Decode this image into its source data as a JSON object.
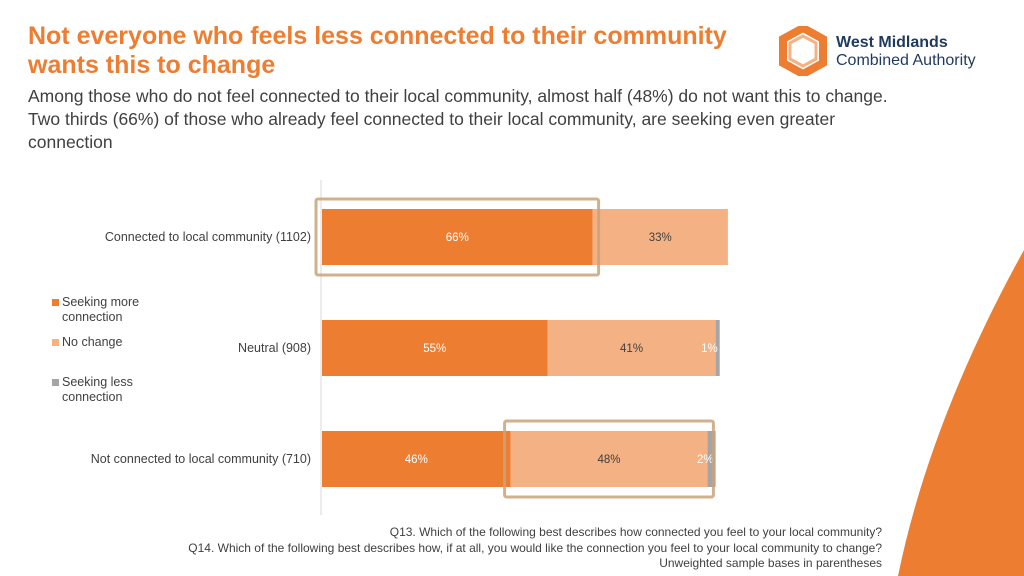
{
  "header": {
    "title": "Not everyone who feels less connected to their community wants this to change",
    "subtitle": "Among those who do not feel connected to their local community, almost half (48%) do not want this to change. Two thirds (66%) of those who already feel connected to their local community, are seeking even greater connection"
  },
  "logo": {
    "line1": "West Midlands",
    "line2": "Combined Authority"
  },
  "chart_data": {
    "type": "bar",
    "orientation": "horizontal",
    "stacked": true,
    "categories": [
      "Connected to local community (1102)",
      "Neutral (908)",
      "Not connected to local community (710)"
    ],
    "series": [
      {
        "name": "Seeking more connection",
        "values": [
          66,
          55,
          46
        ],
        "labels": [
          "66%",
          "55%",
          "46%"
        ],
        "color": "#ED7D31"
      },
      {
        "name": "No change",
        "values": [
          33,
          41,
          48
        ],
        "labels": [
          "33%",
          "41%",
          "48%"
        ],
        "color": "#F4B183"
      },
      {
        "name": "Seeking less connection",
        "values": [
          0,
          1,
          2
        ],
        "labels": [
          "",
          "1%",
          "2%"
        ],
        "color": "#A5A5A5"
      }
    ],
    "xlim": [
      0,
      100
    ],
    "legend_position": "left",
    "highlights": [
      {
        "category_index": 0,
        "series_index": 0
      },
      {
        "category_index": 2,
        "series_index": 1
      }
    ]
  },
  "footnote": {
    "line1": "Q13. Which of the following best describes how connected you feel to your local community?",
    "line2": "Q14. Which of the following best describes how, if at all, you would like the connection you feel to your local community to change?",
    "line3": "Unweighted sample bases in parentheses"
  },
  "colors": {
    "accent": "#ED7D31",
    "light": "#F4B183",
    "grey": "#A5A5A5",
    "highlight_border": "#C9A27A"
  }
}
